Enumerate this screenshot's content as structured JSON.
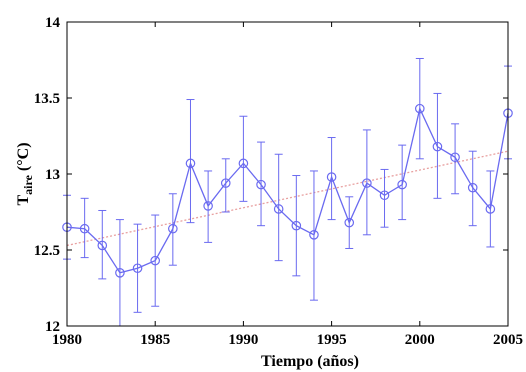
{
  "chart_data": {
    "type": "line",
    "xlabel": "Tiempo (años)",
    "ylabel": {
      "main": "T",
      "sub": "aire",
      "unit": " (°C)"
    },
    "xlim": [
      1980,
      2005
    ],
    "ylim": [
      12,
      14
    ],
    "xticks": [
      "1980",
      "1985",
      "1990",
      "1995",
      "2000",
      "2005"
    ],
    "yticks": [
      "12",
      "12.5",
      "13",
      "13.5",
      "14"
    ],
    "grid": false,
    "colors": {
      "series": "#6a6af0",
      "trend": "#e8a0a0",
      "axis": "#000000"
    },
    "series": [
      {
        "x": [
          1980,
          1981,
          1982,
          1983,
          1984,
          1985,
          1986,
          1987,
          1988,
          1989,
          1990,
          1991,
          1992,
          1993,
          1994,
          1995,
          1996,
          1997,
          1998,
          1999,
          2000,
          2001,
          2002,
          2003,
          2004,
          2005
        ],
        "y": [
          12.65,
          12.64,
          12.53,
          12.35,
          12.38,
          12.43,
          12.64,
          13.07,
          12.79,
          12.94,
          13.07,
          12.93,
          12.77,
          12.66,
          12.6,
          12.98,
          12.68,
          12.94,
          12.86,
          12.93,
          13.43,
          13.18,
          13.11,
          12.91,
          12.77,
          13.4
        ],
        "err_low": [
          12.44,
          12.45,
          12.31,
          12.0,
          12.09,
          12.13,
          12.4,
          12.68,
          12.55,
          12.75,
          12.82,
          12.66,
          12.43,
          12.33,
          12.17,
          12.7,
          12.51,
          12.6,
          12.65,
          12.7,
          13.1,
          12.84,
          12.87,
          12.66,
          12.52,
          13.1
        ],
        "err_high": [
          12.86,
          12.84,
          12.76,
          12.7,
          12.67,
          12.73,
          12.87,
          13.49,
          13.02,
          13.1,
          13.38,
          13.21,
          13.13,
          12.99,
          13.02,
          13.24,
          12.85,
          13.29,
          13.03,
          13.19,
          13.76,
          13.53,
          13.33,
          13.15,
          13.02,
          13.71
        ]
      }
    ],
    "trend": {
      "x": [
        1980,
        2005
      ],
      "y": [
        12.53,
        13.15
      ]
    }
  }
}
